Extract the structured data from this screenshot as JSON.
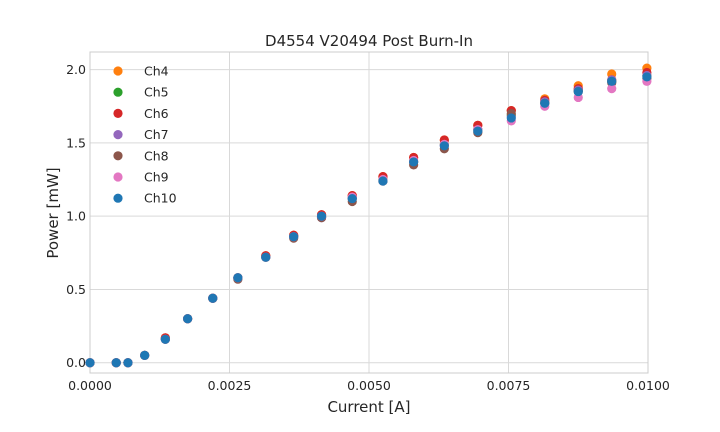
{
  "chart_data": {
    "type": "scatter",
    "title": "D4554 V20494 Post Burn-In",
    "xlabel": "Current [A]",
    "ylabel": "Power [mW]",
    "xlim": [
      0.0,
      0.01
    ],
    "ylim": [
      -0.07,
      2.12
    ],
    "xticks": [
      0.0,
      0.0025,
      0.005,
      0.0075,
      0.01
    ],
    "xtick_labels": [
      "0.0000",
      "0.0025",
      "0.0050",
      "0.0075",
      "0.0100"
    ],
    "yticks": [
      0.0,
      0.5,
      1.0,
      1.5,
      2.0
    ],
    "ytick_labels": [
      "0.0",
      "0.5",
      "1.0",
      "1.5",
      "2.0"
    ],
    "grid": true,
    "legend_position": "top-left",
    "x": [
      0.0,
      0.00047,
      0.00068,
      0.00098,
      0.00135,
      0.00175,
      0.0022,
      0.00265,
      0.00315,
      0.00365,
      0.00415,
      0.0047,
      0.00525,
      0.0058,
      0.00635,
      0.00695,
      0.00755,
      0.00815,
      0.00875,
      0.00935,
      0.00998
    ],
    "series": [
      {
        "name": "Ch4",
        "color": "#ff7f0e",
        "values": [
          0.0,
          0.0,
          0.0,
          0.05,
          0.17,
          0.3,
          0.44,
          0.58,
          0.73,
          0.87,
          1.01,
          1.14,
          1.27,
          1.4,
          1.52,
          1.62,
          1.72,
          1.8,
          1.89,
          1.97,
          2.01
        ]
      },
      {
        "name": "Ch5",
        "color": "#2ca02c",
        "values": [
          0.0,
          0.0,
          0.0,
          0.05,
          0.16,
          0.3,
          0.44,
          0.58,
          0.72,
          0.86,
          1.0,
          1.12,
          1.25,
          1.37,
          1.49,
          1.59,
          1.69,
          1.77,
          1.86,
          1.92,
          1.96
        ]
      },
      {
        "name": "Ch6",
        "color": "#d62728",
        "values": [
          0.0,
          0.0,
          0.0,
          0.05,
          0.17,
          0.3,
          0.44,
          0.58,
          0.73,
          0.87,
          1.01,
          1.14,
          1.27,
          1.4,
          1.52,
          1.62,
          1.72,
          1.79,
          1.87,
          1.93,
          1.98
        ]
      },
      {
        "name": "Ch7",
        "color": "#9467bd",
        "values": [
          0.0,
          0.0,
          0.0,
          0.05,
          0.16,
          0.3,
          0.44,
          0.58,
          0.72,
          0.86,
          0.99,
          1.12,
          1.24,
          1.37,
          1.48,
          1.59,
          1.68,
          1.78,
          1.86,
          1.93,
          1.96
        ]
      },
      {
        "name": "Ch8",
        "color": "#8c564b",
        "values": [
          0.0,
          0.0,
          0.0,
          0.05,
          0.16,
          0.3,
          0.44,
          0.57,
          0.72,
          0.85,
          0.99,
          1.1,
          1.24,
          1.35,
          1.46,
          1.57,
          1.7,
          1.77,
          1.85,
          1.91,
          1.94
        ]
      },
      {
        "name": "Ch9",
        "color": "#e377c2",
        "values": [
          0.0,
          0.0,
          0.0,
          0.05,
          0.16,
          0.3,
          0.44,
          0.58,
          0.72,
          0.86,
          1.0,
          1.13,
          1.25,
          1.38,
          1.49,
          1.59,
          1.65,
          1.75,
          1.81,
          1.87,
          1.92
        ]
      },
      {
        "name": "Ch10",
        "color": "#1f77b4",
        "values": [
          0.0,
          0.0,
          0.0,
          0.05,
          0.16,
          0.3,
          0.44,
          0.58,
          0.72,
          0.86,
          1.0,
          1.12,
          1.24,
          1.37,
          1.48,
          1.58,
          1.67,
          1.77,
          1.85,
          1.92,
          1.95
        ]
      }
    ]
  }
}
